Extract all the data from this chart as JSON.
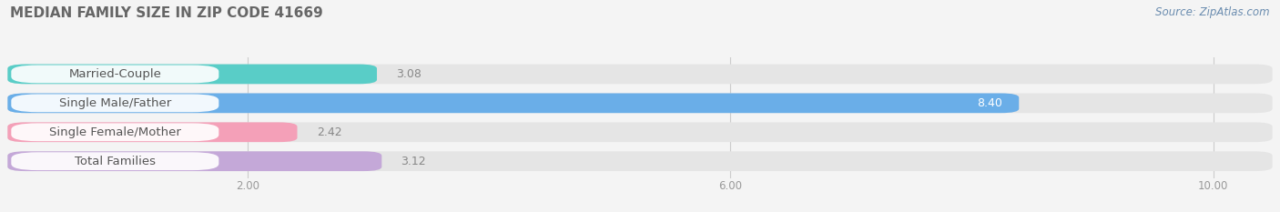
{
  "title": "MEDIAN FAMILY SIZE IN ZIP CODE 41669",
  "source": "Source: ZipAtlas.com",
  "categories": [
    "Married-Couple",
    "Single Male/Father",
    "Single Female/Mother",
    "Total Families"
  ],
  "values": [
    3.08,
    8.4,
    2.42,
    3.12
  ],
  "bar_colors": [
    "#59cdc7",
    "#6aaee8",
    "#f4a0b8",
    "#c4a8d8"
  ],
  "value_labels": [
    "3.08",
    "8.40",
    "2.42",
    "3.12"
  ],
  "value_label_inside": [
    false,
    true,
    false,
    false
  ],
  "xlim": [
    0.0,
    10.5
  ],
  "xticks": [
    2.0,
    6.0,
    10.0
  ],
  "xtick_labels": [
    "2.00",
    "6.00",
    "10.00"
  ],
  "background_color": "#f4f4f4",
  "bar_background_color": "#e5e5e5",
  "title_fontsize": 11,
  "label_fontsize": 9.5,
  "value_fontsize": 9,
  "source_fontsize": 8.5
}
